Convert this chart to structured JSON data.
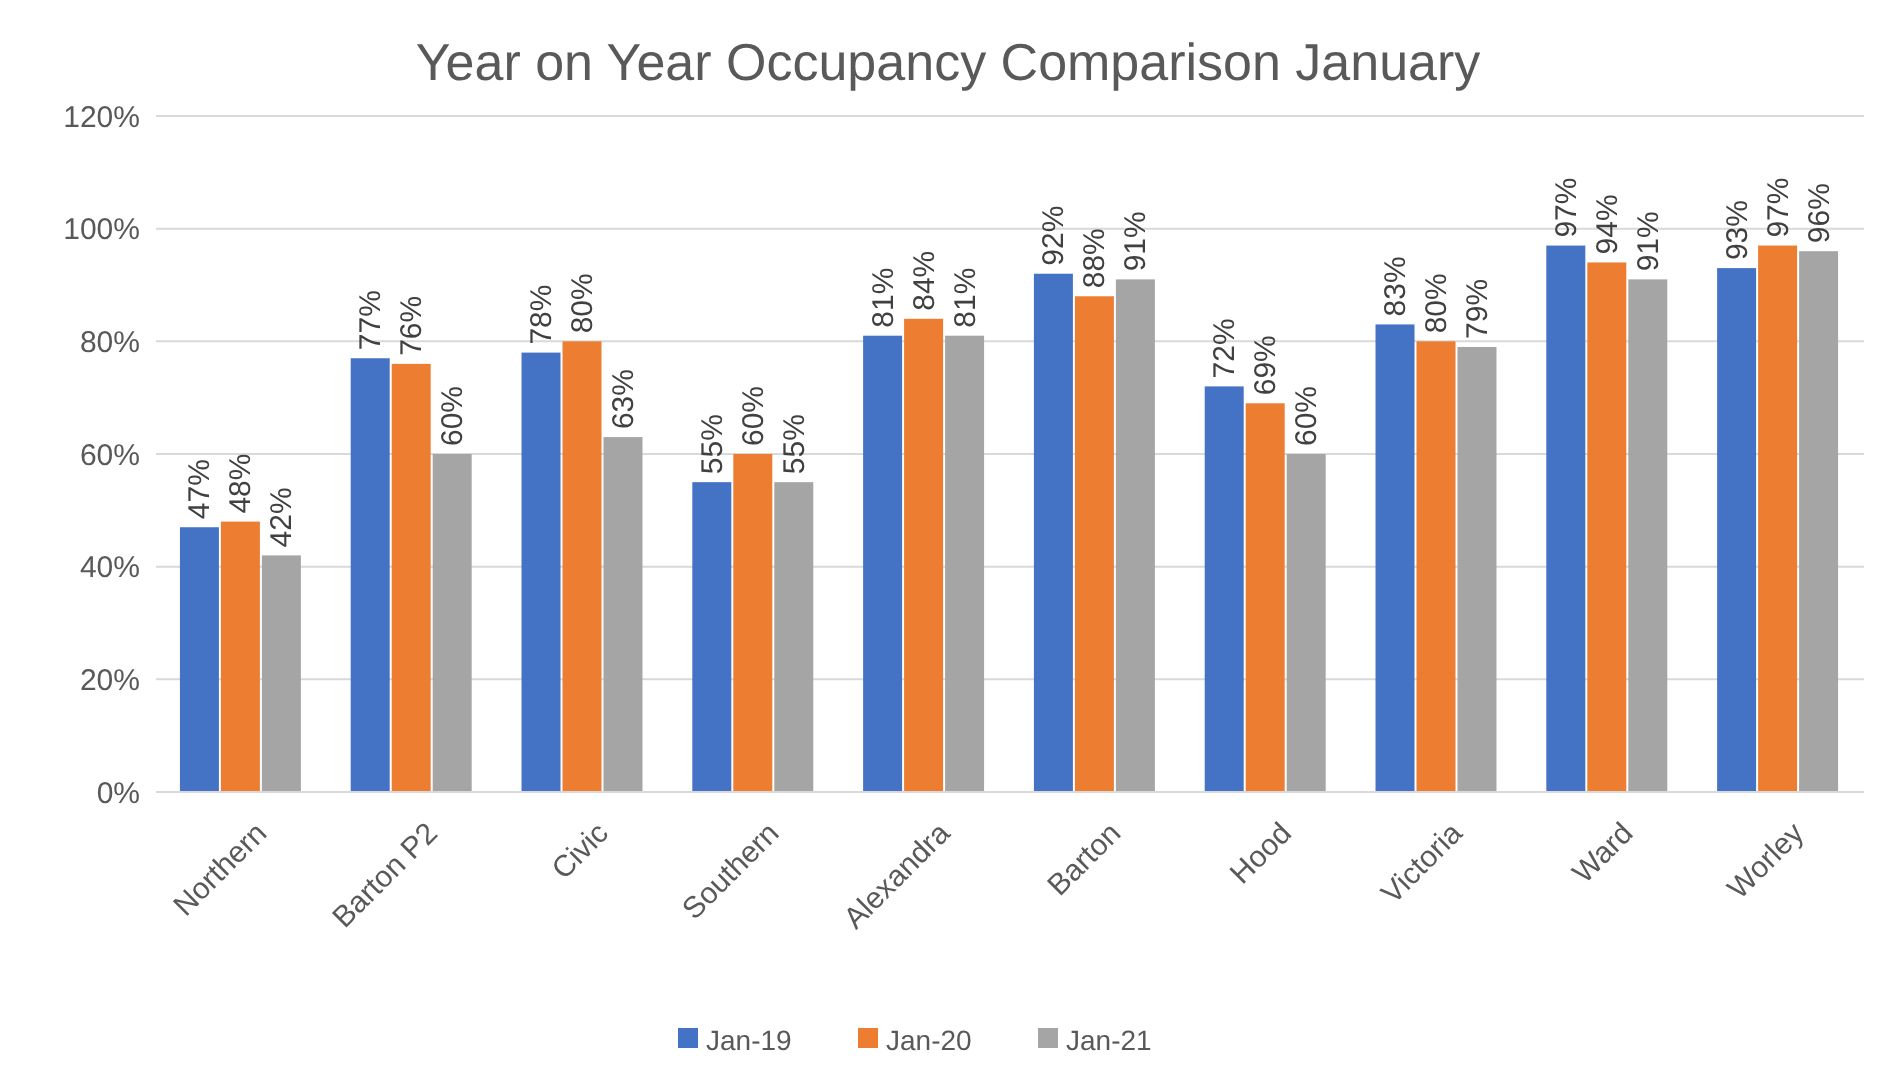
{
  "chart_data": {
    "type": "bar",
    "title": "Year on Year Occupancy Comparison January",
    "categories": [
      "Northern",
      "Barton P2",
      "Civic",
      "Southern",
      "Alexandra",
      "Barton",
      "Hood",
      "Victoria",
      "Ward",
      "Worley"
    ],
    "series": [
      {
        "name": "Jan-19",
        "color": "#4472c4",
        "values": [
          47,
          77,
          78,
          55,
          81,
          92,
          72,
          83,
          97,
          93
        ],
        "value_labels": [
          "47%",
          "77%",
          "78%",
          "55%",
          "81%",
          "92%",
          "72%",
          "83%",
          "97%",
          "93%"
        ]
      },
      {
        "name": "Jan-20",
        "color": "#ed7d31",
        "values": [
          48,
          76,
          80,
          60,
          84,
          88,
          69,
          80,
          94,
          97
        ],
        "value_labels": [
          "48%",
          "76%",
          "80%",
          "60%",
          "84%",
          "88%",
          "69%",
          "80%",
          "94%",
          "97%"
        ]
      },
      {
        "name": "Jan-21",
        "color": "#a5a5a5",
        "values": [
          42,
          60,
          63,
          55,
          81,
          91,
          60,
          79,
          91,
          96
        ],
        "value_labels": [
          "42%",
          "60%",
          "63%",
          "55%",
          "81%",
          "91%",
          "60%",
          "79%",
          "91%",
          "96%"
        ]
      }
    ],
    "ylim": [
      0,
      120
    ],
    "yticks": [
      {
        "value": 0,
        "label": "0%"
      },
      {
        "value": 20,
        "label": "20%"
      },
      {
        "value": 40,
        "label": "40%"
      },
      {
        "value": 60,
        "label": "60%"
      },
      {
        "value": 80,
        "label": "80%"
      },
      {
        "value": 100,
        "label": "100%"
      },
      {
        "value": 120,
        "label": "120%"
      }
    ],
    "grid": "y",
    "legend": "bottom"
  }
}
